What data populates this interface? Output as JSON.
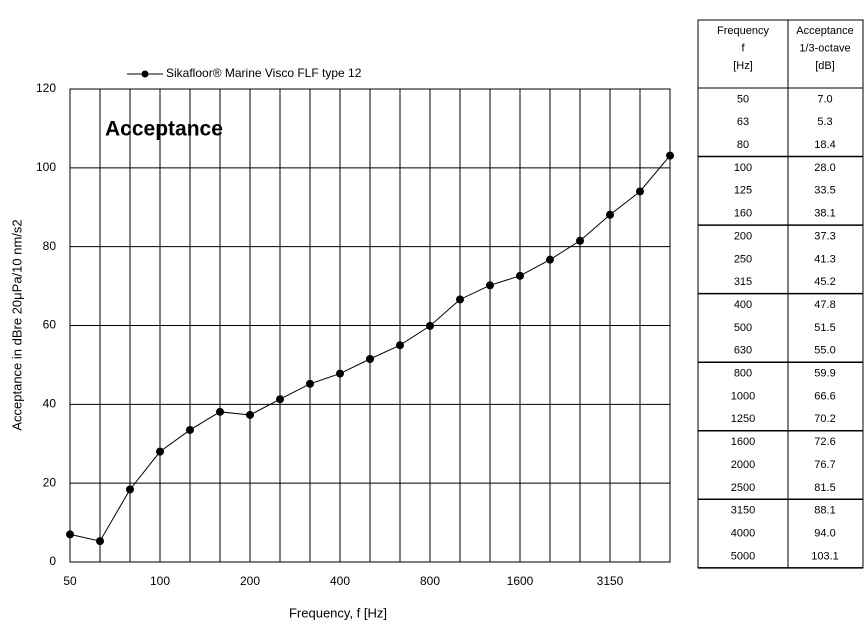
{
  "chart_data": {
    "type": "line",
    "annotation": "Acceptance",
    "xlabel": "Frequency, f [Hz]",
    "ylabel": "Acceptance in  dBre 20μPa/10 nm/s2",
    "categories": [
      "50",
      null,
      null,
      "100",
      null,
      null,
      "200",
      null,
      null,
      "400",
      null,
      null,
      "800",
      null,
      null,
      "1600",
      null,
      null,
      "3150",
      null,
      null
    ],
    "series": [
      {
        "name": "Sikafloor® Marine Visco FLF type 12",
        "color": "#000000",
        "values": [
          7.0,
          5.3,
          18.4,
          28.0,
          33.5,
          38.1,
          37.3,
          41.3,
          45.2,
          47.8,
          51.5,
          55.0,
          59.9,
          66.6,
          70.2,
          72.6,
          76.7,
          81.5,
          88.1,
          94.0,
          103.1
        ]
      }
    ],
    "ylim": [
      0,
      120
    ],
    "yticks": [
      0,
      20,
      40,
      60,
      80,
      100,
      120
    ],
    "grid": true
  },
  "table": {
    "header": [
      [
        "Frequency",
        "f",
        "[Hz]"
      ],
      [
        "Acceptance",
        "1/3-octave",
        "[dB]"
      ]
    ],
    "rows": [
      [
        "50",
        "7.0"
      ],
      [
        "63",
        "5.3"
      ],
      [
        "80",
        "18.4"
      ],
      [
        "100",
        "28.0"
      ],
      [
        "125",
        "33.5"
      ],
      [
        "160",
        "38.1"
      ],
      [
        "200",
        "37.3"
      ],
      [
        "250",
        "41.3"
      ],
      [
        "315",
        "45.2"
      ],
      [
        "400",
        "47.8"
      ],
      [
        "500",
        "51.5"
      ],
      [
        "630",
        "55.0"
      ],
      [
        "800",
        "59.9"
      ],
      [
        "1000",
        "66.6"
      ],
      [
        "1250",
        "70.2"
      ],
      [
        "1600",
        "72.6"
      ],
      [
        "2000",
        "76.7"
      ],
      [
        "2500",
        "81.5"
      ],
      [
        "3150",
        "88.1"
      ],
      [
        "4000",
        "94.0"
      ],
      [
        "5000",
        "103.1"
      ]
    ]
  }
}
